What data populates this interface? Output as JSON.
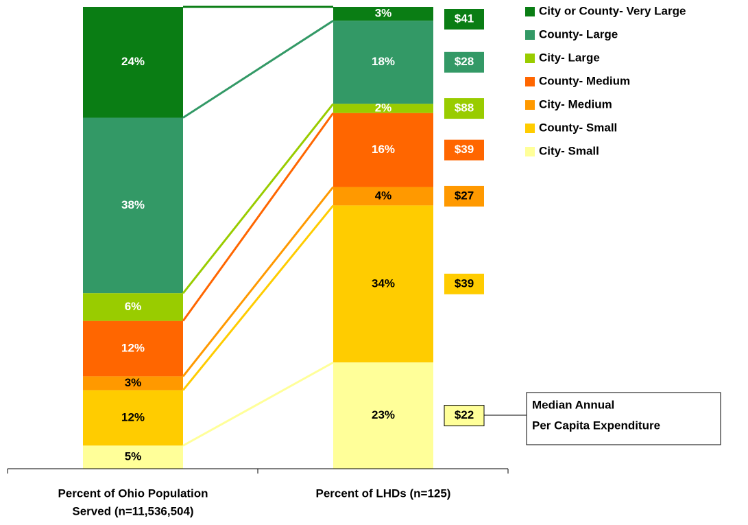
{
  "chart_data": {
    "type": "stacked_bar",
    "categories": [
      [
        "Percent of Ohio Population",
        "Served (n=11,536,504)"
      ],
      [
        "Percent of LHDs (n=125)"
      ]
    ],
    "series": [
      {
        "name": "City or County- Very Large",
        "color": "#0a7d14",
        "label_color": "#ffffff",
        "values": [
          24,
          3
        ],
        "value_labels": [
          "24%",
          "3%"
        ]
      },
      {
        "name": "County- Large",
        "color": "#339966",
        "label_color": "#ffffff",
        "values": [
          38,
          18
        ],
        "value_labels": [
          "38%",
          "18%"
        ]
      },
      {
        "name": "City- Large",
        "color": "#99cc00",
        "label_color": "#ffffff",
        "values": [
          6,
          2
        ],
        "value_labels": [
          "6%",
          "2%"
        ]
      },
      {
        "name": "County- Medium",
        "color": "#ff6600",
        "label_color": "#ffffff",
        "values": [
          12,
          16
        ],
        "value_labels": [
          "12%",
          "16%"
        ]
      },
      {
        "name": "City- Medium",
        "color": "#ff9900",
        "label_color": "#000000",
        "values": [
          3,
          4
        ],
        "value_labels": [
          "3%",
          "4%"
        ]
      },
      {
        "name": "County- Small",
        "color": "#ffcc00",
        "label_color": "#000000",
        "values": [
          12,
          34
        ],
        "value_labels": [
          "12%",
          "34%"
        ]
      },
      {
        "name": "City- Small",
        "color": "#ffff99",
        "label_color": "#000000",
        "values": [
          5,
          23
        ],
        "value_labels": [
          "5%",
          "23%"
        ]
      }
    ],
    "expenditure": {
      "values": [
        41,
        28,
        88,
        39,
        27,
        39,
        22
      ],
      "value_labels": [
        "$41",
        "$28",
        "$88",
        "$39",
        "$27",
        "$39",
        "$22"
      ],
      "label_colors": [
        "#ffffff",
        "#ffffff",
        "#ffffff",
        "#ffffff",
        "#000000",
        "#000000",
        "#000000"
      ]
    },
    "ylim": [
      0,
      100
    ],
    "annotation": [
      "Median Annual",
      "Per Capita Expenditure"
    ],
    "legend": "top-right"
  }
}
